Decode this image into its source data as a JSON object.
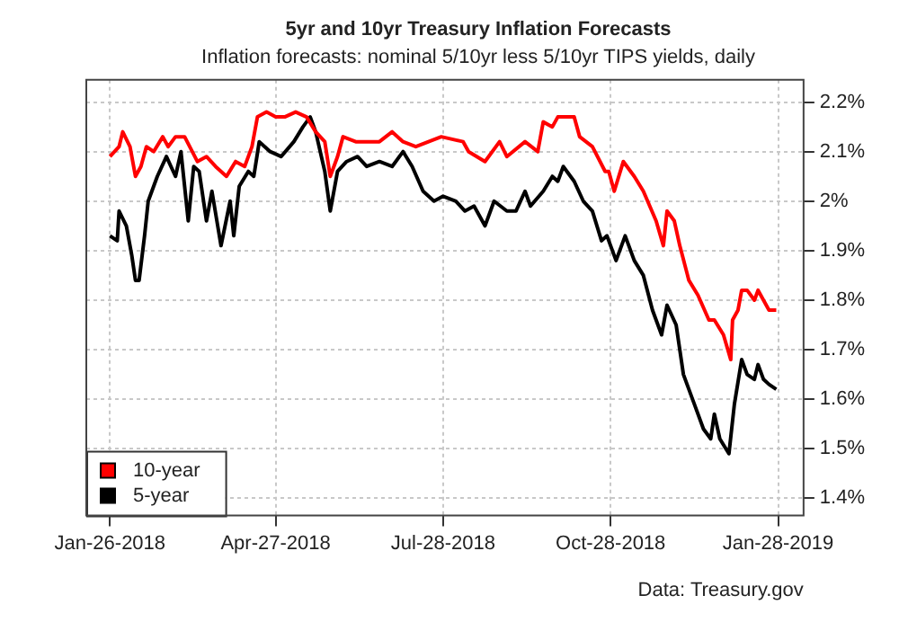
{
  "chart_data": {
    "type": "line",
    "title": "5yr and 10yr Treasury Inflation Forecasts",
    "subtitle": "Inflation forecasts: nominal 5/10yr less 5/10yr TIPS yields, daily",
    "annotations": [
      "Data: Treasury.gov"
    ],
    "xlim": [
      "2018-01-13",
      "2019-02-11"
    ],
    "xticks": [
      {
        "value": "2018-01-26",
        "label": "Jan-26-2018"
      },
      {
        "value": "2018-04-27",
        "label": "Apr-27-2018"
      },
      {
        "value": "2018-07-28",
        "label": "Jul-28-2018"
      },
      {
        "value": "2018-10-28",
        "label": "Oct-28-2018"
      },
      {
        "value": "2019-01-28",
        "label": "Jan-28-2019"
      }
    ],
    "ylim": [
      1.365,
      2.245
    ],
    "yticks": [
      {
        "value": 1.4,
        "label": "1.4%"
      },
      {
        "value": 1.5,
        "label": "1.5%"
      },
      {
        "value": 1.6,
        "label": "1.6%"
      },
      {
        "value": 1.7,
        "label": "1.7%"
      },
      {
        "value": 1.8,
        "label": "1.8%"
      },
      {
        "value": 1.9,
        "label": "1.9%"
      },
      {
        "value": 2.0,
        "label": "2%"
      },
      {
        "value": 2.1,
        "label": "2.1%"
      },
      {
        "value": 2.2,
        "label": "2.2%"
      }
    ],
    "grid": true,
    "legend": "bottom left",
    "marker": "none",
    "line_style": "solid",
    "series": [
      {
        "name": "10-year",
        "color": "#ff0000",
        "x": [
          "2018-01-26",
          "2018-01-31",
          "2018-02-02",
          "2018-02-06",
          "2018-02-09",
          "2018-02-12",
          "2018-02-15",
          "2018-02-19",
          "2018-02-24",
          "2018-02-27",
          "2018-03-03",
          "2018-03-08",
          "2018-03-15",
          "2018-03-20",
          "2018-03-25",
          "2018-03-31",
          "2018-04-05",
          "2018-04-10",
          "2018-04-14",
          "2018-04-17",
          "2018-04-22",
          "2018-04-27",
          "2018-05-02",
          "2018-05-08",
          "2018-05-14",
          "2018-05-19",
          "2018-05-24",
          "2018-05-27",
          "2018-05-31",
          "2018-06-03",
          "2018-06-10",
          "2018-06-16",
          "2018-06-23",
          "2018-06-30",
          "2018-07-06",
          "2018-07-13",
          "2018-07-20",
          "2018-07-27",
          "2018-08-08",
          "2018-08-11",
          "2018-08-20",
          "2018-08-28",
          "2018-09-01",
          "2018-09-11",
          "2018-09-18",
          "2018-09-21",
          "2018-09-26",
          "2018-09-29",
          "2018-10-08",
          "2018-10-11",
          "2018-10-18",
          "2018-10-25",
          "2018-10-27",
          "2018-10-30",
          "2018-11-04",
          "2018-11-10",
          "2018-11-15",
          "2018-11-22",
          "2018-11-26",
          "2018-11-28",
          "2018-12-02",
          "2018-12-05",
          "2018-12-10",
          "2018-12-15",
          "2018-12-21",
          "2018-12-24",
          "2018-12-29",
          "2019-01-02",
          "2019-01-03",
          "2019-01-06",
          "2019-01-08",
          "2019-01-11",
          "2019-01-15",
          "2019-01-17",
          "2019-01-20",
          "2019-01-23",
          "2019-01-27"
        ],
        "values": [
          2.09,
          2.11,
          2.14,
          2.11,
          2.05,
          2.07,
          2.11,
          2.1,
          2.13,
          2.11,
          2.13,
          2.13,
          2.08,
          2.09,
          2.07,
          2.05,
          2.08,
          2.07,
          2.11,
          2.17,
          2.18,
          2.17,
          2.17,
          2.18,
          2.17,
          2.14,
          2.12,
          2.05,
          2.09,
          2.13,
          2.12,
          2.12,
          2.12,
          2.14,
          2.12,
          2.11,
          2.12,
          2.13,
          2.12,
          2.1,
          2.08,
          2.12,
          2.09,
          2.12,
          2.1,
          2.16,
          2.15,
          2.17,
          2.17,
          2.13,
          2.11,
          2.06,
          2.06,
          2.02,
          2.08,
          2.05,
          2.02,
          1.96,
          1.91,
          1.98,
          1.96,
          1.91,
          1.84,
          1.81,
          1.76,
          1.76,
          1.73,
          1.68,
          1.76,
          1.78,
          1.82,
          1.82,
          1.8,
          1.82,
          1.8,
          1.78,
          1.78
        ]
      },
      {
        "name": "5-year",
        "color": "#000000",
        "x": [
          "2018-01-26",
          "2018-01-30",
          "2018-01-31",
          "2018-02-04",
          "2018-02-07",
          "2018-02-09",
          "2018-02-11",
          "2018-02-14",
          "2018-02-16",
          "2018-02-21",
          "2018-02-26",
          "2018-03-03",
          "2018-03-06",
          "2018-03-10",
          "2018-03-13",
          "2018-03-16",
          "2018-03-20",
          "2018-03-23",
          "2018-03-28",
          "2018-04-02",
          "2018-04-04",
          "2018-04-07",
          "2018-04-12",
          "2018-04-15",
          "2018-04-18",
          "2018-04-24",
          "2018-04-30",
          "2018-05-07",
          "2018-05-12",
          "2018-05-16",
          "2018-05-19",
          "2018-05-24",
          "2018-05-27",
          "2018-05-31",
          "2018-06-05",
          "2018-06-11",
          "2018-06-16",
          "2018-06-23",
          "2018-06-30",
          "2018-07-06",
          "2018-07-11",
          "2018-07-17",
          "2018-07-23",
          "2018-07-28",
          "2018-08-04",
          "2018-08-09",
          "2018-08-14",
          "2018-08-20",
          "2018-08-25",
          "2018-09-01",
          "2018-09-06",
          "2018-09-11",
          "2018-09-14",
          "2018-09-21",
          "2018-09-26",
          "2018-09-29",
          "2018-10-02",
          "2018-10-08",
          "2018-10-13",
          "2018-10-18",
          "2018-10-23",
          "2018-10-26",
          "2018-10-31",
          "2018-11-05",
          "2018-11-10",
          "2018-11-15",
          "2018-11-20",
          "2018-11-25",
          "2018-11-28",
          "2018-12-03",
          "2018-12-07",
          "2018-12-13",
          "2018-12-18",
          "2018-12-22",
          "2018-12-24",
          "2018-12-27",
          "2019-01-01",
          "2019-01-04",
          "2019-01-08",
          "2019-01-11",
          "2019-01-15",
          "2019-01-17",
          "2019-01-20",
          "2019-01-23",
          "2019-01-27"
        ],
        "values": [
          1.93,
          1.92,
          1.98,
          1.95,
          1.89,
          1.84,
          1.84,
          1.93,
          2.0,
          2.05,
          2.09,
          2.05,
          2.1,
          1.96,
          2.07,
          2.06,
          1.96,
          2.02,
          1.91,
          2.0,
          1.93,
          2.03,
          2.06,
          2.05,
          2.12,
          2.1,
          2.09,
          2.12,
          2.15,
          2.17,
          2.14,
          2.06,
          1.98,
          2.06,
          2.08,
          2.09,
          2.07,
          2.08,
          2.07,
          2.1,
          2.07,
          2.02,
          2.0,
          2.01,
          2.0,
          1.98,
          1.99,
          1.95,
          2.0,
          1.98,
          1.98,
          2.02,
          1.99,
          2.02,
          2.05,
          2.04,
          2.07,
          2.04,
          2.0,
          1.98,
          1.92,
          1.93,
          1.88,
          1.93,
          1.88,
          1.85,
          1.78,
          1.73,
          1.79,
          1.75,
          1.65,
          1.59,
          1.54,
          1.52,
          1.57,
          1.52,
          1.49,
          1.59,
          1.68,
          1.65,
          1.64,
          1.67,
          1.64,
          1.63,
          1.62
        ]
      }
    ]
  }
}
